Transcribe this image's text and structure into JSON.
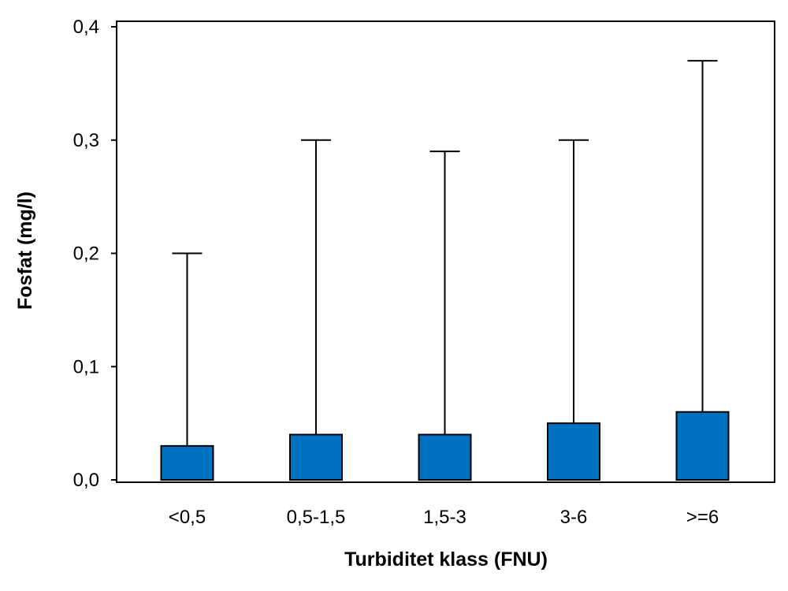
{
  "colors": {
    "bar_fill": "#0070c0",
    "axis": "#000000",
    "background": "#ffffff"
  },
  "chart_data": {
    "type": "bar",
    "title": "",
    "xlabel": "Turbiditet klass (FNU)",
    "ylabel": "Fosfat (mg/l)",
    "categories": [
      "<0,5",
      "0,5-1,5",
      "1,5-3",
      "3-6",
      ">=6"
    ],
    "values": [
      0.03,
      0.04,
      0.04,
      0.05,
      0.06
    ],
    "error_upper": [
      0.2,
      0.3,
      0.29,
      0.3,
      0.37
    ],
    "ylim": [
      0,
      0.4
    ],
    "yticks": [
      0.0,
      0.1,
      0.2,
      0.3,
      0.4
    ],
    "ytick_labels": [
      "0,0",
      "0,1",
      "0,2",
      "0,3",
      "0,4"
    ],
    "grid": false,
    "legend": "none"
  }
}
